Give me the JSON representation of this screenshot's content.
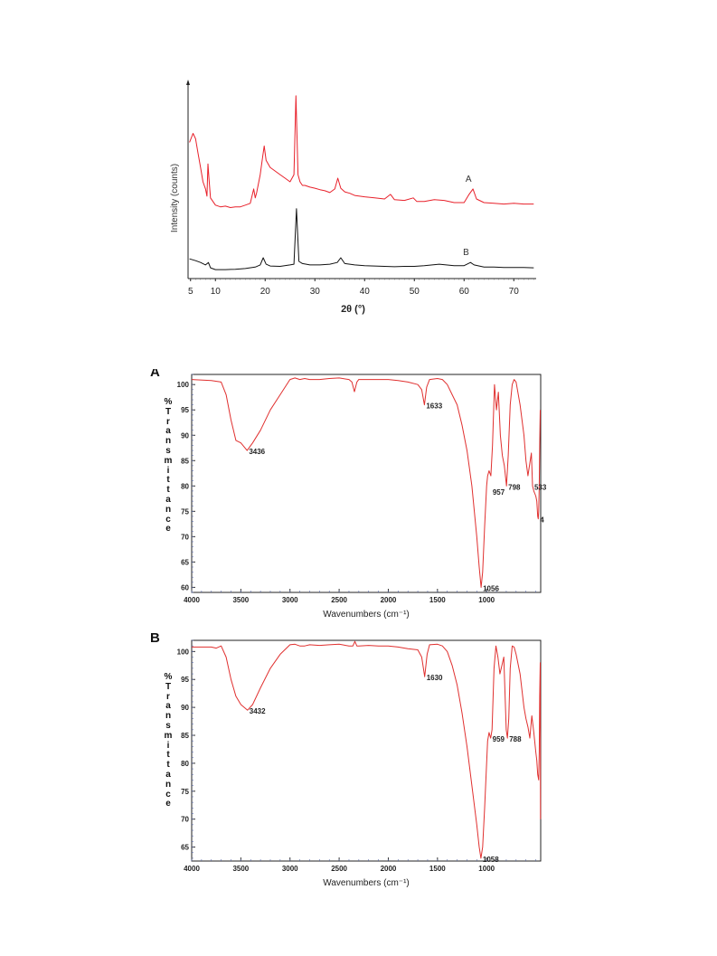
{
  "chart_data": [
    {
      "type": "line",
      "title": "",
      "xlabel": "2θ (°)",
      "ylabel": "Intensity (counts)",
      "xlim": [
        4.5,
        74.5
      ],
      "xticks": [
        5,
        10,
        20,
        30,
        40,
        50,
        60,
        70
      ],
      "legend": "inline",
      "series": [
        {
          "name": "A",
          "color": "#e8202a",
          "x": [
            4.8,
            5.5,
            6.0,
            6.5,
            7.0,
            7.5,
            8.0,
            8.3,
            8.5,
            8.7,
            9.0,
            10,
            11,
            12,
            13,
            14,
            15,
            16,
            17,
            17.7,
            18.0,
            18.3,
            19,
            19.5,
            19.8,
            20.2,
            21,
            22,
            23,
            24,
            25,
            25.8,
            26.2,
            26.6,
            27,
            27.5,
            28,
            29,
            30,
            31,
            32,
            33,
            34,
            34.6,
            35.2,
            36,
            37,
            38,
            40,
            42,
            44,
            45.2,
            46,
            48,
            49.8,
            50.5,
            52,
            54,
            56,
            58,
            60,
            61.0,
            61.8,
            62.5,
            64,
            66,
            68,
            70,
            72,
            74
          ],
          "y": [
            520,
            545,
            530,
            490,
            450,
            410,
            390,
            370,
            460,
            420,
            365,
            345,
            340,
            342,
            338,
            340,
            340,
            345,
            350,
            390,
            365,
            380,
            430,
            480,
            510,
            470,
            450,
            440,
            430,
            420,
            410,
            430,
            650,
            430,
            410,
            400,
            400,
            395,
            392,
            388,
            385,
            380,
            390,
            420,
            392,
            382,
            378,
            372,
            368,
            365,
            362,
            375,
            360,
            358,
            365,
            355,
            355,
            360,
            358,
            352,
            352,
            375,
            390,
            362,
            352,
            350,
            348,
            350,
            348,
            348
          ]
        },
        {
          "name": "B",
          "color": "#111111",
          "x": [
            4.8,
            6,
            7,
            8,
            8.6,
            9.0,
            10,
            12,
            14,
            16,
            18,
            19,
            19.6,
            20.2,
            21,
            23,
            25,
            25.8,
            26.3,
            26.8,
            27.5,
            29,
            31,
            33,
            34.5,
            35.2,
            36,
            38,
            40,
            42,
            44,
            46,
            48,
            50,
            52,
            55,
            58,
            60,
            61.3,
            62,
            64,
            66,
            68,
            70,
            72,
            74
          ],
          "y": [
            195,
            190,
            185,
            178,
            185,
            170,
            165,
            165,
            166,
            168,
            172,
            178,
            198,
            180,
            175,
            174,
            178,
            180,
            335,
            188,
            182,
            178,
            178,
            180,
            185,
            198,
            182,
            178,
            176,
            175,
            174,
            173,
            174,
            174,
            176,
            180,
            176,
            176,
            185,
            178,
            172,
            172,
            171,
            171,
            171,
            170
          ]
        }
      ]
    },
    {
      "type": "line",
      "title": "",
      "panel": "A",
      "xlabel": "Wavenumbers (cm⁻¹)",
      "ylabel": "%Transmittance",
      "xlim": [
        4000,
        450
      ],
      "ylim": [
        59,
        102
      ],
      "xticks": [
        4000,
        3500,
        3000,
        2500,
        2000,
        1500,
        1000
      ],
      "yticks": [
        60,
        65,
        70,
        75,
        80,
        85,
        90,
        95,
        100
      ],
      "annotations": [
        {
          "x": 3436,
          "y": 87,
          "text": "3436"
        },
        {
          "x": 1633,
          "y": 96,
          "text": "1633"
        },
        {
          "x": 1056,
          "y": 60,
          "text": "1056"
        },
        {
          "x": 957,
          "y": 79,
          "text": "957"
        },
        {
          "x": 798,
          "y": 80,
          "text": "798"
        },
        {
          "x": 533,
          "y": 80,
          "text": "533"
        },
        {
          "x": 475,
          "y": 73.5,
          "text": "4"
        }
      ],
      "series": [
        {
          "color": "#e0302f",
          "x": [
            4000,
            3800,
            3700,
            3650,
            3600,
            3550,
            3500,
            3436,
            3380,
            3300,
            3200,
            3100,
            3000,
            2950,
            2900,
            2850,
            2800,
            2700,
            2600,
            2500,
            2400,
            2370,
            2345,
            2320,
            2300,
            2200,
            2100,
            2000,
            1900,
            1800,
            1700,
            1660,
            1633,
            1610,
            1580,
            1500,
            1450,
            1400,
            1350,
            1300,
            1250,
            1200,
            1150,
            1100,
            1075,
            1056,
            1040,
            1020,
            1000,
            990,
            975,
            957,
            940,
            920,
            900,
            880,
            860,
            840,
            820,
            798,
            780,
            760,
            740,
            720,
            700,
            660,
            620,
            600,
            580,
            560,
            545,
            533,
            520,
            500,
            490,
            480,
            475,
            470,
            465,
            460,
            455
          ],
          "y": [
            101,
            100.8,
            100.5,
            98,
            93,
            89,
            88.5,
            87,
            88.5,
            91,
            95,
            98,
            101,
            101.3,
            101,
            101.2,
            101,
            101,
            101.2,
            101.3,
            101,
            100.5,
            98.6,
            100.5,
            101,
            101,
            101,
            101,
            100.8,
            100.5,
            100,
            99,
            96,
            99.5,
            101,
            101.2,
            101,
            100,
            98,
            96,
            92,
            87,
            80,
            70,
            64,
            60,
            63,
            72,
            80,
            82,
            83,
            82,
            88,
            100,
            95,
            98.5,
            90,
            86,
            84,
            80,
            86,
            96,
            100,
            101,
            100.5,
            96,
            90,
            85,
            82,
            84.5,
            86.5,
            80,
            79,
            78,
            77,
            74,
            73.5,
            75,
            80,
            88,
            95
          ]
        }
      ]
    },
    {
      "type": "line",
      "title": "",
      "panel": "B",
      "xlabel": "Wavenumbers (cm⁻¹)",
      "ylabel": "%Transmittance",
      "xlim": [
        4000,
        450
      ],
      "ylim": [
        62.5,
        102
      ],
      "xticks": [
        4000,
        3500,
        3000,
        2500,
        2000,
        1500,
        1000
      ],
      "yticks": [
        65,
        70,
        75,
        80,
        85,
        90,
        95,
        100
      ],
      "annotations": [
        {
          "x": 3432,
          "y": 89.5,
          "text": "3432"
        },
        {
          "x": 1630,
          "y": 95.5,
          "text": "1630"
        },
        {
          "x": 1058,
          "y": 63,
          "text": "1058"
        },
        {
          "x": 959,
          "y": 84.5,
          "text": "959"
        },
        {
          "x": 788,
          "y": 84.5,
          "text": "788"
        }
      ],
      "series": [
        {
          "color": "#e0302f",
          "x": [
            4000,
            3900,
            3800,
            3750,
            3700,
            3650,
            3600,
            3550,
            3500,
            3432,
            3380,
            3300,
            3200,
            3100,
            3000,
            2950,
            2900,
            2850,
            2800,
            2700,
            2600,
            2500,
            2400,
            2360,
            2340,
            2320,
            2300,
            2200,
            2100,
            2000,
            1900,
            1800,
            1700,
            1660,
            1630,
            1605,
            1580,
            1500,
            1450,
            1400,
            1350,
            1300,
            1250,
            1200,
            1150,
            1100,
            1075,
            1058,
            1040,
            1020,
            1000,
            990,
            975,
            959,
            945,
            925,
            905,
            885,
            865,
            845,
            825,
            800,
            788,
            775,
            760,
            740,
            720,
            700,
            660,
            620,
            600,
            580,
            560,
            540,
            520,
            500,
            490,
            480,
            470,
            465,
            460,
            455,
            452
          ],
          "y": [
            100.8,
            100.8,
            100.8,
            100.6,
            101,
            99,
            95,
            92,
            90.5,
            89.5,
            90.5,
            93.5,
            97,
            99.5,
            101.2,
            101.3,
            101,
            101,
            101.2,
            101.1,
            101.2,
            101.3,
            101,
            101,
            101.8,
            101,
            101,
            101.1,
            101,
            101,
            100.8,
            100.5,
            100.3,
            99,
            95.5,
            99.5,
            101.2,
            101.3,
            101,
            100,
            97.5,
            94,
            89,
            83,
            76,
            69,
            65,
            63,
            65,
            72,
            80,
            84,
            85.5,
            84.5,
            86,
            97,
            101,
            99,
            96,
            97.5,
            99,
            86,
            84.5,
            88,
            97,
            101,
            100.8,
            99.5,
            96,
            90,
            88,
            86.5,
            84.5,
            88.5,
            85.5,
            82,
            80.5,
            78,
            77,
            82,
            92,
            98,
            70
          ]
        }
      ]
    },
    {
      "type": "labels",
      "xrd_labels": {
        "series_a": "A",
        "series_b": "B"
      },
      "ftir_a_letter": "A",
      "ftir_b_letter": "B"
    }
  ]
}
